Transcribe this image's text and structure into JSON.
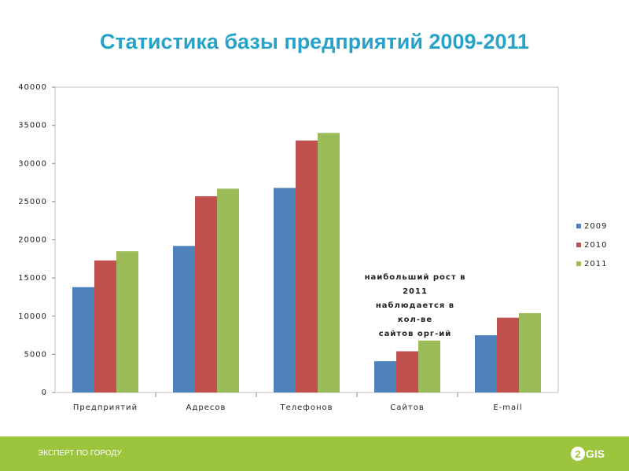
{
  "title": "Статистика базы предприятий 2009-2011",
  "chart_data": {
    "type": "bar",
    "categories": [
      "Предприятий",
      "Адресов",
      "Телефонов",
      "Сайтов",
      "E-mail"
    ],
    "series": [
      {
        "name": "2009",
        "color": "#4F81BD",
        "values": [
          13800,
          19200,
          26800,
          4100,
          7500
        ]
      },
      {
        "name": "2010",
        "color": "#C0504D",
        "values": [
          17300,
          25700,
          33000,
          5400,
          9800
        ]
      },
      {
        "name": "2011",
        "color": "#9BBB59",
        "values": [
          18500,
          26700,
          34000,
          6800,
          10400
        ]
      }
    ],
    "y_ticks": [
      "0",
      "5000",
      "10000",
      "15000",
      "20000",
      "25000",
      "30000",
      "35000",
      "40000"
    ],
    "ylim": [
      0,
      40000
    ],
    "grid": false,
    "legend_position": "right",
    "annotation": [
      "наибольший рост в",
      "2011",
      "наблюдается в кол-ве",
      "сайтов орг-ий"
    ]
  },
  "footer": {
    "text": "ЭКСПЕРТ ПО ГОРОДУ",
    "logo_mark": "2",
    "logo_text": "GIS"
  }
}
